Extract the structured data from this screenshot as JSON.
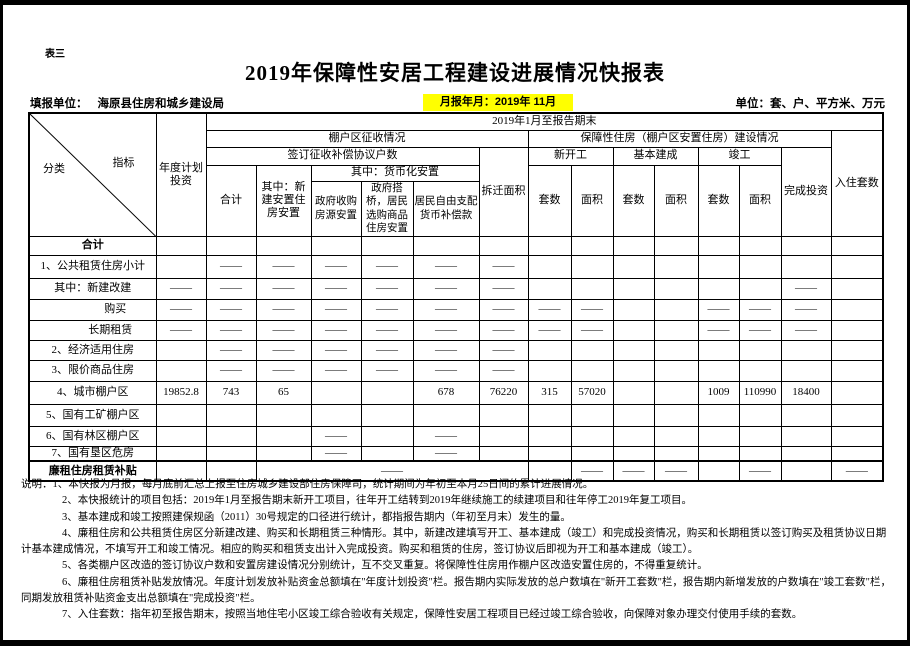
{
  "page": {
    "corner_label": "表三",
    "title": "2019年保障性安居工程建设进展情况快报表",
    "filler_label": "填报单位：",
    "filler_value": "海原县住房和城乡建设局",
    "report_month": "月报年月：2019年 11月",
    "units_label": "单位：套、户、平方米、万元",
    "highlight_color": "#ffff00"
  },
  "table": {
    "header": {
      "category": "分类",
      "indicator": "指标",
      "annual_plan": "年度计划投资",
      "period": "2019年1月至报告期末",
      "shantytown_group": "棚户区征收情况",
      "agreement_group": "签订征收补偿协议户数",
      "total": "合计",
      "new_build_housing": "其中：新建安置住房安置",
      "monetized_group": "其中：货币化安置",
      "gov_purchase": "政府收购房源安置",
      "gov_bridge": "政府搭桥，居民选购商品住房安置",
      "resident_cash": "居民自由支配货币补偿款",
      "demolition_area": "拆迁面积",
      "construction_group": "保障性住房（棚户区安置住房）建设情况",
      "new_start": "新开工",
      "basic_done": "基本建成",
      "completed": "竣工",
      "sets": "套数",
      "area": "面积",
      "investment": "完成投资",
      "occupied": "入住套数"
    },
    "body": {
      "rows": [
        {
          "label": "合计",
          "bold": true,
          "cells": [
            "",
            "",
            "",
            "",
            "",
            "",
            "",
            "",
            "",
            "",
            "",
            "",
            "",
            "",
            ""
          ]
        },
        {
          "label": "1、公共租赁住房小计",
          "cells": [
            "",
            "——",
            "——",
            "——",
            "——",
            "——",
            "——",
            "",
            "",
            "",
            "",
            "",
            "",
            "",
            ""
          ]
        },
        {
          "label": "其中：新建改建",
          "cells": [
            "——",
            "——",
            "——",
            "——",
            "——",
            "——",
            "——",
            "",
            "",
            "",
            "",
            "",
            "",
            "——",
            ""
          ]
        },
        {
          "label": "购买",
          "pad": 45,
          "cells": [
            "——",
            "——",
            "——",
            "——",
            "——",
            "——",
            "——",
            "——",
            "——",
            "",
            "",
            "——",
            "——",
            "——",
            ""
          ]
        },
        {
          "label": "长期租赁",
          "pad": 35,
          "cells": [
            "——",
            "——",
            "——",
            "——",
            "——",
            "——",
            "——",
            "——",
            "——",
            "",
            "",
            "——",
            "——",
            "——",
            ""
          ]
        },
        {
          "label": "2、经济适用住房",
          "cells": [
            "",
            "——",
            "——",
            "——",
            "——",
            "——",
            "——",
            "",
            "",
            "",
            "",
            "",
            "",
            "",
            ""
          ]
        },
        {
          "label": "3、限价商品住房",
          "cells": [
            "",
            "——",
            "——",
            "——",
            "——",
            "——",
            "——",
            "",
            "",
            "",
            "",
            "",
            "",
            "",
            ""
          ]
        },
        {
          "label": "4、城市棚户区",
          "cells": [
            "19852.8",
            "743",
            "65",
            "",
            "",
            "678",
            "76220",
            "315",
            "57020",
            "",
            "",
            "1009",
            "110990",
            "18400",
            ""
          ]
        },
        {
          "label": "5、国有工矿棚户区",
          "cells": [
            "",
            "",
            "",
            "",
            "",
            "",
            "",
            "",
            "",
            "",
            "",
            "",
            "",
            "",
            ""
          ]
        },
        {
          "label": "6、国有林区棚户区",
          "cells": [
            "",
            "",
            "",
            "——",
            "",
            "——",
            "",
            "",
            "",
            "",
            "",
            "",
            "",
            "",
            ""
          ]
        },
        {
          "label": "7、国有垦区危房",
          "cells": [
            "",
            "",
            "",
            "——",
            "",
            "——",
            "",
            "",
            "",
            "",
            "",
            "",
            "",
            "",
            ""
          ]
        },
        {
          "label": "廉租住房租赁补贴",
          "bold": true,
          "thick_top": true,
          "cells": [
            "",
            "",
            "——",
            "",
            "——",
            "——",
            "——",
            "",
            "——",
            "",
            "——"
          ],
          "spans": [
            1,
            1,
            5,
            1,
            1,
            1,
            1,
            1,
            1,
            1,
            1
          ]
        }
      ]
    }
  },
  "notes": {
    "lines": [
      {
        "text": "说明：1、本快报为月报，每月底前汇总上报至住房城乡建设部住房保障司，统计期间为年初至本月25日间的累计进展情况。",
        "indent": false
      },
      {
        "text": "2、本快报统计的项目包括：2019年1月至报告期末新开工项目，往年开工结转到2019年继续施工的续建项目和往年停工2019年复工项目。",
        "indent": true
      },
      {
        "text": "3、基本建成和竣工按照建保规函（2011）30号规定的口径进行统计，都指报告期内（年初至月末）发生的量。",
        "indent": true
      },
      {
        "text": "4、廉租住房和公共租赁住房区分新建改建、购买和长期租赁三种情形。其中，新建改建填写开工、基本建成（竣工）和完成投资情况，购买和长期租赁以签订购买及租赁协议日期",
        "indent": true
      },
      {
        "text": "计基本建成情况，不填写开工和竣工情况。相应的购买和租赁支出计入完成投资。购买和租赁的住房，签订协议后即视为开工和基本建成（竣工）。",
        "indent": false
      },
      {
        "text": "5、各类棚户区改造的签订协议户数和安置房建设情况分别统计，互不交叉重复。将保障性住房用作棚户区改造安置住房的，不得重复统计。",
        "indent": true
      },
      {
        "text": "6、廉租住房租赁补贴发放情况。年度计划发放补贴资金总额填在\"年度计划投资\"栏。报告期内实际发放的总户数填在\"新开工套数\"栏，报告期内新增发放的户数填在\"竣工套数\"栏，",
        "indent": true
      },
      {
        "text": "同期发放租赁补贴资金支出总额填在\"完成投资\"栏。",
        "indent": false
      },
      {
        "text": "7、入住套数：指年初至报告期末，按照当地住宅小区竣工综合验收有关规定，保障性安居工程项目已经过竣工综合验收，向保障对象办理交付使用手续的套数。",
        "indent": true
      }
    ]
  }
}
